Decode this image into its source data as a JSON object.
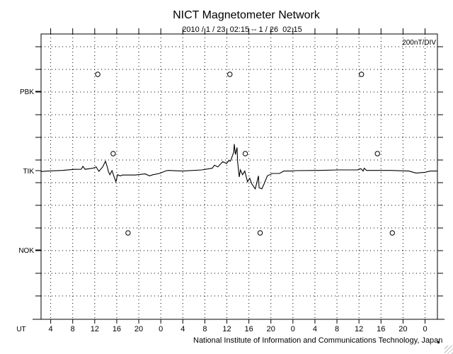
{
  "chart_data": {
    "type": "line",
    "title": "NICT Magnetometer Network",
    "subtitle": "2010 / 1 / 23  02:15 -- 1 / 26  02:15",
    "scale_label": "200nT/DIV",
    "xlabel": "UT",
    "credit": "National Institute of Information and Communications Technology, Japan",
    "x_unit": "hours since 2010/1/23 02:15 UT",
    "xlim": [
      0,
      72
    ],
    "x_tick_labels": [
      "4",
      "8",
      "12",
      "16",
      "20",
      "0",
      "4",
      "8",
      "12",
      "16",
      "20",
      "0",
      "4",
      "8",
      "12",
      "16",
      "20",
      "0"
    ],
    "x_tick_hours": [
      1.75,
      5.75,
      9.75,
      13.75,
      17.75,
      21.75,
      25.75,
      29.75,
      33.75,
      37.75,
      41.75,
      45.75,
      49.75,
      53.75,
      57.75,
      61.75,
      65.75,
      69.75
    ],
    "nt_per_division": 200,
    "stations": [
      {
        "name": "PBK",
        "offset_div": 3.5,
        "markers_hours": [
          10.3,
          34.3,
          58.2
        ]
      },
      {
        "name": "TIK",
        "offset_div": 0,
        "markers_hours": [
          13.1,
          37.1,
          61.1
        ]
      },
      {
        "name": "NOK",
        "offset_div": -3.5,
        "markers_hours": [
          15.8,
          39.8,
          63.8
        ]
      }
    ],
    "series": [
      {
        "name": "TIK",
        "unit": "nT",
        "x": [
          0,
          1.3,
          3.9,
          6.0,
          7.3,
          7.6,
          8.0,
          9.4,
          10.0,
          10.5,
          11.2,
          11.7,
          12.1,
          12.2,
          12.5,
          12.9,
          13.2,
          13.6,
          13.9,
          14.4,
          14.8,
          17.1,
          18.9,
          19.7,
          20.3,
          21.5,
          22.8,
          23.1,
          25.7,
          29.2,
          31.1,
          31.5,
          32.1,
          33.0,
          33.7,
          34.1,
          34.4,
          35.0,
          35.1,
          35.3,
          35.6,
          35.7,
          36.0,
          36.2,
          36.6,
          37.0,
          37.5,
          37.9,
          38.3,
          38.9,
          39.5,
          39.6,
          40.1,
          40.5,
          41.1,
          42.0,
          43.3,
          44.1,
          45.6,
          46.3,
          50.5,
          54.0,
          57.5,
          58.1,
          58.5,
          58.7,
          59.1,
          63.4,
          66.8,
          68.1,
          69.7,
          70.7,
          72.0
        ],
        "y": [
          -8,
          -4,
          2,
          11,
          12,
          38,
          12,
          21,
          33,
          -6,
          33,
          83,
          21,
          -4,
          -36,
          0,
          -46,
          -98,
          -36,
          -46,
          -39,
          -39,
          -29,
          -46,
          -36,
          -25,
          0,
          2,
          -4,
          6,
          21,
          48,
          33,
          79,
          63,
          89,
          83,
          163,
          235,
          142,
          204,
          79,
          -56,
          6,
          -36,
          -4,
          -98,
          -67,
          -119,
          -161,
          -46,
          -150,
          -161,
          -119,
          -46,
          -25,
          -25,
          -4,
          -4,
          0,
          2,
          6,
          6,
          17,
          -4,
          21,
          2,
          2,
          -4,
          -21,
          -15,
          -4,
          -4
        ]
      }
    ]
  }
}
